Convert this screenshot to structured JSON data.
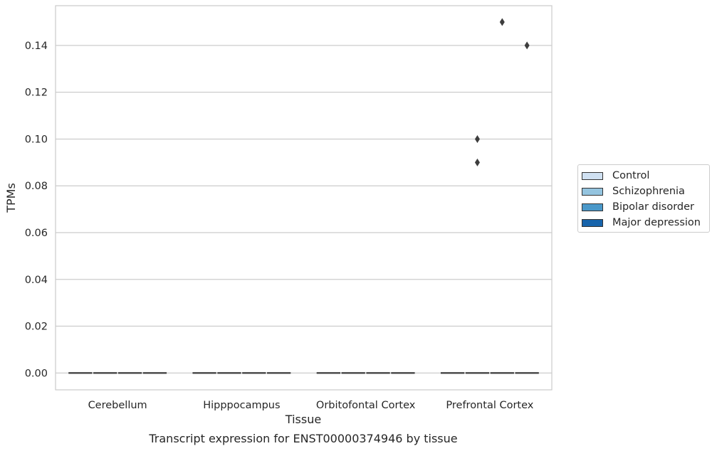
{
  "chart_data": {
    "type": "box",
    "xlabel": "Tissue",
    "ylabel": "TPMs",
    "caption": "Transcript expression for ENST00000374946 by tissue",
    "categories": [
      "Cerebellum",
      "Hipppocampus",
      "Orbitofontal Cortex",
      "Prefrontal Cortex"
    ],
    "series": [
      {
        "name": "Control",
        "color": "#d0e1f2"
      },
      {
        "name": "Schizophrenia",
        "color": "#94c4df"
      },
      {
        "name": "Bipolar disorder",
        "color": "#4a98c9"
      },
      {
        "name": "Major depression",
        "color": "#1764ab"
      }
    ],
    "boxes": [
      {
        "category": "Cerebellum",
        "series": "Control",
        "min": 0,
        "q1": 0,
        "median": 0,
        "q3": 0,
        "max": 0
      },
      {
        "category": "Cerebellum",
        "series": "Schizophrenia",
        "min": 0,
        "q1": 0,
        "median": 0,
        "q3": 0,
        "max": 0
      },
      {
        "category": "Cerebellum",
        "series": "Bipolar disorder",
        "min": 0,
        "q1": 0,
        "median": 0,
        "q3": 0,
        "max": 0
      },
      {
        "category": "Cerebellum",
        "series": "Major depression",
        "min": 0,
        "q1": 0,
        "median": 0,
        "q3": 0,
        "max": 0
      },
      {
        "category": "Hipppocampus",
        "series": "Control",
        "min": 0,
        "q1": 0,
        "median": 0,
        "q3": 0,
        "max": 0
      },
      {
        "category": "Hipppocampus",
        "series": "Schizophrenia",
        "min": 0,
        "q1": 0,
        "median": 0,
        "q3": 0,
        "max": 0
      },
      {
        "category": "Hipppocampus",
        "series": "Bipolar disorder",
        "min": 0,
        "q1": 0,
        "median": 0,
        "q3": 0,
        "max": 0
      },
      {
        "category": "Hipppocampus",
        "series": "Major depression",
        "min": 0,
        "q1": 0,
        "median": 0,
        "q3": 0,
        "max": 0
      },
      {
        "category": "Orbitofontal Cortex",
        "series": "Control",
        "min": 0,
        "q1": 0,
        "median": 0,
        "q3": 0,
        "max": 0
      },
      {
        "category": "Orbitofontal Cortex",
        "series": "Schizophrenia",
        "min": 0,
        "q1": 0,
        "median": 0,
        "q3": 0,
        "max": 0
      },
      {
        "category": "Orbitofontal Cortex",
        "series": "Bipolar disorder",
        "min": 0,
        "q1": 0,
        "median": 0,
        "q3": 0,
        "max": 0
      },
      {
        "category": "Orbitofontal Cortex",
        "series": "Major depression",
        "min": 0,
        "q1": 0,
        "median": 0,
        "q3": 0,
        "max": 0
      },
      {
        "category": "Prefrontal Cortex",
        "series": "Control",
        "min": 0,
        "q1": 0,
        "median": 0,
        "q3": 0,
        "max": 0
      },
      {
        "category": "Prefrontal Cortex",
        "series": "Schizophrenia",
        "min": 0,
        "q1": 0,
        "median": 0,
        "q3": 0,
        "max": 0
      },
      {
        "category": "Prefrontal Cortex",
        "series": "Bipolar disorder",
        "min": 0,
        "q1": 0,
        "median": 0,
        "q3": 0,
        "max": 0
      },
      {
        "category": "Prefrontal Cortex",
        "series": "Major depression",
        "min": 0,
        "q1": 0,
        "median": 0,
        "q3": 0,
        "max": 0
      }
    ],
    "outliers": [
      {
        "category": "Prefrontal Cortex",
        "series": "Schizophrenia",
        "value": 0.1
      },
      {
        "category": "Prefrontal Cortex",
        "series": "Schizophrenia",
        "value": 0.09
      },
      {
        "category": "Prefrontal Cortex",
        "series": "Bipolar disorder",
        "value": 0.15
      },
      {
        "category": "Prefrontal Cortex",
        "series": "Major depression",
        "value": 0.14
      }
    ],
    "yticks": [
      "0.00",
      "0.02",
      "0.04",
      "0.06",
      "0.08",
      "0.10",
      "0.12",
      "0.14"
    ],
    "ylim": [
      -0.0072,
      0.157
    ],
    "grid": true,
    "legend_position": "right"
  }
}
